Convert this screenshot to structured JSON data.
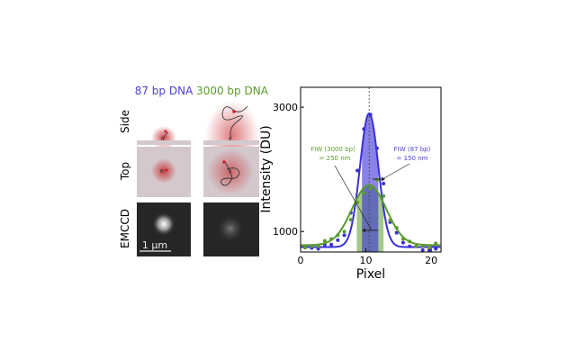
{
  "panels": {
    "columns": [
      "87 bp DNA",
      "3000 bp DNA"
    ],
    "rows": [
      "Side",
      "Top",
      "EMCCD"
    ],
    "bead_label": "B",
    "scale_bar": "1 µm",
    "colors": {
      "short": "#4b3fd6",
      "long": "#5a9a2e",
      "glow": "#c8242a",
      "surface": "#d3c9cc"
    }
  },
  "chart_data": {
    "type": "line",
    "xlabel": "Pixel",
    "ylabel": "Intensity (DU)",
    "xlim": [
      0,
      21.5
    ],
    "ylim": [
      670,
      3320
    ],
    "xticks": [
      0,
      10,
      20
    ],
    "yticks": [
      1000,
      3000
    ],
    "grid": false,
    "center_line_x": 10.5,
    "series": [
      {
        "color": "#3a2fd8",
        "points": [
          [
            0.7,
            745
          ],
          [
            1.7,
            735
          ],
          [
            2.7,
            720
          ],
          [
            3.7,
            790
          ],
          [
            4.7,
            790
          ],
          [
            5.7,
            860
          ],
          [
            6.7,
            940
          ],
          [
            7.7,
            1300
          ],
          [
            8.7,
            1980
          ],
          [
            9.7,
            2650
          ],
          [
            10.7,
            2880
          ],
          [
            11.7,
            2340
          ],
          [
            12.7,
            1770
          ],
          [
            13.7,
            1150
          ],
          [
            14.7,
            980
          ],
          [
            15.7,
            820
          ],
          [
            16.7,
            760
          ],
          [
            17.7,
            760
          ],
          [
            18.7,
            700
          ],
          [
            19.7,
            700
          ],
          [
            20.7,
            720
          ]
        ],
        "fit": {
          "baseline": 750,
          "amplitude": 2150,
          "center": 10.5,
          "sigma": 1.4
        },
        "band": [
          9.4,
          11.9
        ]
      },
      {
        "color": "#5a9a2e",
        "points": [
          [
            0.7,
            740
          ],
          [
            1.7,
            760
          ],
          [
            2.7,
            760
          ],
          [
            3.7,
            850
          ],
          [
            4.7,
            880
          ],
          [
            5.7,
            940
          ],
          [
            6.7,
            1000
          ],
          [
            7.7,
            1190
          ],
          [
            8.7,
            1470
          ],
          [
            9.7,
            1620
          ],
          [
            10.7,
            1690
          ],
          [
            11.7,
            1830
          ],
          [
            12.7,
            1570
          ],
          [
            13.7,
            1180
          ],
          [
            14.7,
            1060
          ],
          [
            15.7,
            880
          ],
          [
            16.7,
            840
          ],
          [
            17.7,
            760
          ],
          [
            18.7,
            760
          ],
          [
            19.7,
            740
          ],
          [
            20.7,
            810
          ]
        ],
        "fit": {
          "baseline": 780,
          "amplitude": 970,
          "center": 10.5,
          "sigma": 2.6
        },
        "band": [
          8.6,
          12.7
        ]
      }
    ],
    "annotations": [
      {
        "lines": [
          "FIW (3000 bp)",
          "= 250 nm"
        ],
        "color": "#5a9a2e"
      },
      {
        "lines": [
          "FIW (87 bp)",
          "= 150 nm"
        ],
        "color": "#4b3fd6"
      }
    ]
  }
}
